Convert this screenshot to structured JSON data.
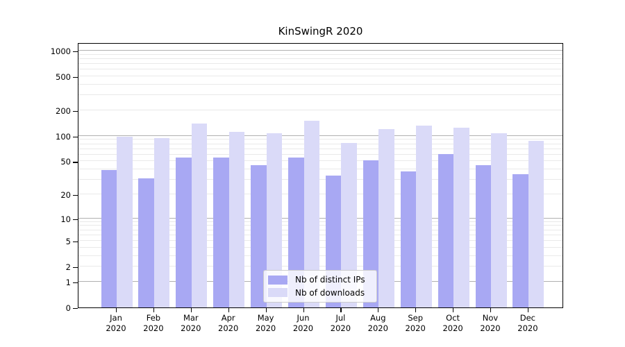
{
  "title": "KinSwingR 2020",
  "legend": {
    "items": [
      {
        "label": "Nb of distinct IPs",
        "color": "#a8a8f3"
      },
      {
        "label": "Nb of downloads",
        "color": "#dadaf8"
      }
    ]
  },
  "chart_data": {
    "type": "bar",
    "title": "KinSwingR 2020",
    "categories": [
      "Jan",
      "Feb",
      "Mar",
      "Apr",
      "May",
      "Jun",
      "Jul",
      "Aug",
      "Sep",
      "Oct",
      "Nov",
      "Dec"
    ],
    "x_year_label": "2020",
    "series": [
      {
        "name": "Nb of distinct IPs",
        "color": "#a8a8f3",
        "values": [
          39,
          31,
          56,
          55,
          45,
          55,
          34,
          51,
          38,
          61,
          45,
          35
        ]
      },
      {
        "name": "Nb of downloads",
        "color": "#dadaf8",
        "values": [
          98,
          94,
          141,
          112,
          108,
          151,
          82,
          121,
          132,
          126,
          107,
          87
        ]
      }
    ],
    "y_ticks": [
      1000,
      500,
      200,
      100,
      50,
      20,
      10,
      5,
      2,
      1,
      0
    ],
    "scale": "log10(value+1)",
    "ylim": [
      0,
      1230
    ],
    "grid": true,
    "legend_position": "inside-bottom-center",
    "xlabel": "",
    "ylabel": ""
  }
}
